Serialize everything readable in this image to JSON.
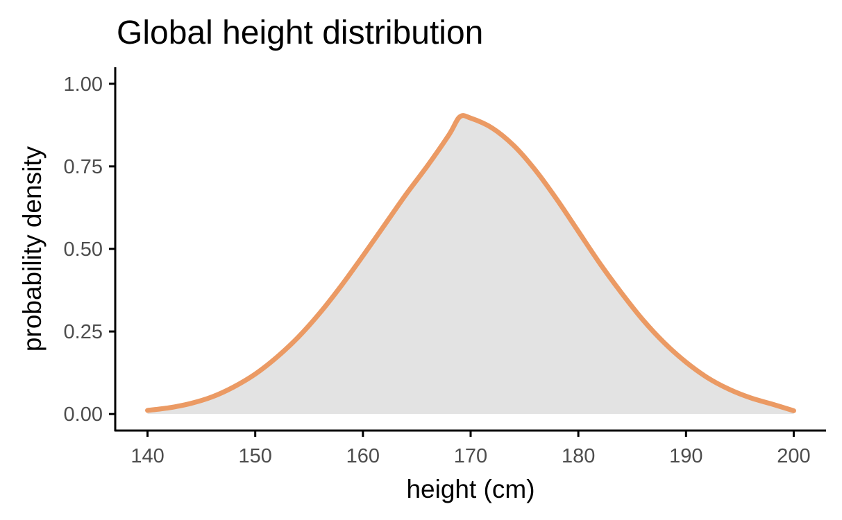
{
  "chart_data": {
    "type": "area",
    "title": "Global height distribution",
    "xlabel": "height (cm)",
    "ylabel": "probability density",
    "xlim": [
      137,
      203
    ],
    "ylim": [
      -0.05,
      1.05
    ],
    "x_ticks": [
      140,
      150,
      160,
      170,
      180,
      190,
      200
    ],
    "x_tick_labels": [
      "140",
      "150",
      "160",
      "170",
      "180",
      "190",
      "200"
    ],
    "y_ticks": [
      0.0,
      0.25,
      0.5,
      0.75,
      1.0
    ],
    "y_tick_labels": [
      "0.00",
      "0.25",
      "0.50",
      "0.75",
      "1.00"
    ],
    "grid": false,
    "series": [
      {
        "x": [
          140,
          142,
          144,
          146,
          148,
          150,
          152,
          154,
          156,
          158,
          160,
          162,
          164,
          166,
          168,
          169,
          170,
          172,
          174,
          176,
          178,
          180,
          182,
          184,
          186,
          188,
          190,
          192,
          194,
          196,
          198,
          200
        ],
        "values": [
          0.011,
          0.019,
          0.032,
          0.052,
          0.082,
          0.121,
          0.172,
          0.233,
          0.306,
          0.389,
          0.479,
          0.572,
          0.665,
          0.752,
          0.846,
          0.9,
          0.896,
          0.866,
          0.813,
          0.739,
          0.65,
          0.553,
          0.456,
          0.367,
          0.285,
          0.215,
          0.157,
          0.11,
          0.075,
          0.049,
          0.03,
          0.01
        ],
        "line_color": "#EB9A64",
        "fill_color": "#E3E3E3"
      }
    ]
  }
}
